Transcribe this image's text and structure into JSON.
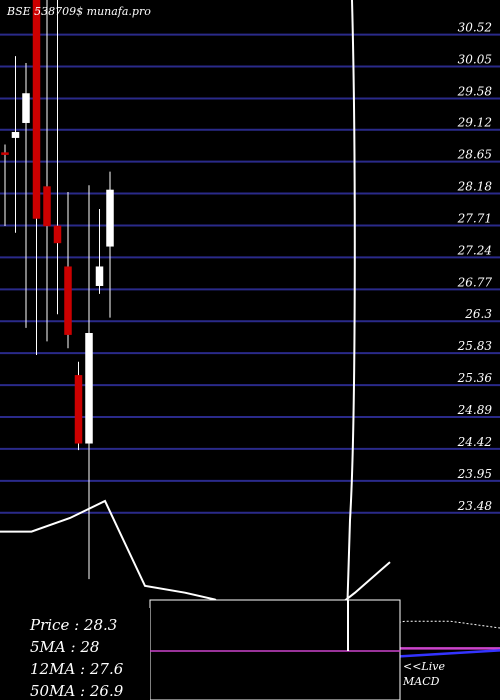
{
  "header": {
    "text": "BSE 538709$ munafa.pro"
  },
  "chart_data": {
    "type": "candlestick",
    "price_axis": {
      "labels": [
        "30.52",
        "30.05",
        "29.58",
        "29.12",
        "28.65",
        "28.18",
        "27.71",
        "27.24",
        "26.77",
        "26.3",
        "25.83",
        "25.36",
        "24.89",
        "24.42",
        "23.95",
        "23.48"
      ],
      "range": [
        23.3,
        30.75
      ],
      "gridlines": true
    },
    "candles": [
      {
        "open": 28.68,
        "close": 28.65,
        "high": 28.8,
        "low": 27.6
      },
      {
        "open": 28.9,
        "close": 28.98,
        "high": 30.1,
        "low": 27.5
      },
      {
        "open": 29.12,
        "close": 29.55,
        "high": 30.0,
        "low": 26.1
      },
      {
        "open": 31.0,
        "close": 27.71,
        "high": 31.0,
        "low": 25.7
      },
      {
        "open": 28.18,
        "close": 27.6,
        "high": 31.0,
        "low": 25.9
      },
      {
        "open": 27.6,
        "close": 27.35,
        "high": 31.0,
        "low": 26.3
      },
      {
        "open": 27.0,
        "close": 26.0,
        "high": 28.1,
        "low": 25.8
      },
      {
        "open": 25.4,
        "close": 24.4,
        "high": 25.6,
        "low": 24.3
      },
      {
        "open": 24.4,
        "close": 26.02,
        "high": 28.2,
        "low": 22.4
      },
      {
        "open": 26.72,
        "close": 27.0,
        "high": 27.85,
        "low": 26.6
      },
      {
        "open": 27.3,
        "close": 28.13,
        "high": 28.4,
        "low": 26.25
      }
    ],
    "up_color": "#ffffff",
    "down_color": "#cc0000",
    "grid_color": "#2a2a8a",
    "macd_line": [
      [
        0,
        23.1
      ],
      [
        0.063,
        23.1
      ],
      [
        0.14,
        23.3
      ],
      [
        0.21,
        23.55
      ],
      [
        0.29,
        22.3
      ],
      [
        0.37,
        22.2
      ],
      [
        0.43,
        22.1
      ],
      [
        0.49,
        21.7
      ],
      [
        0.53,
        21.2
      ],
      [
        0.58,
        21.3
      ],
      [
        0.64,
        21.8
      ],
      [
        0.71,
        22.2
      ],
      [
        0.78,
        22.65
      ]
    ],
    "signal_line": [
      [
        0.55,
        21.3
      ],
      [
        0.65,
        21.45
      ],
      [
        0.74,
        21.68
      ],
      [
        0.81,
        21.78
      ],
      [
        0.9,
        21.78
      ],
      [
        1.0,
        21.68
      ]
    ],
    "ma_lines": [
      {
        "label": "MA-magenta",
        "color": "#cc44cc",
        "points": [
          [
            0,
            21.5
          ],
          [
            0.2,
            21.42
          ],
          [
            0.5,
            21.35
          ],
          [
            0.8,
            21.38
          ],
          [
            1.0,
            21.38
          ]
        ]
      },
      {
        "label": "MA-blue",
        "color": "#3333ff",
        "points": [
          [
            0,
            21.05
          ],
          [
            0.3,
            21.05
          ],
          [
            0.7,
            21.22
          ],
          [
            1.0,
            21.35
          ]
        ]
      }
    ]
  },
  "info_box": {
    "lines": [
      {
        "key": "Price",
        "sep": "  : ",
        "value": "28.3"
      },
      {
        "key": "5MA",
        "sep": " : ",
        "value": "28"
      },
      {
        "key": "12MA",
        "sep": " : ",
        "value": "27.6"
      },
      {
        "key": "50MA",
        "sep": " : ",
        "value": "26.9"
      }
    ]
  },
  "macd_panel": {
    "live_label": "<<Live",
    "macd_label": "MACD"
  },
  "colors": {
    "background": "#000000",
    "text": "#ffffff",
    "macd_line": "#ffffff",
    "white_line": "#ffffff"
  }
}
